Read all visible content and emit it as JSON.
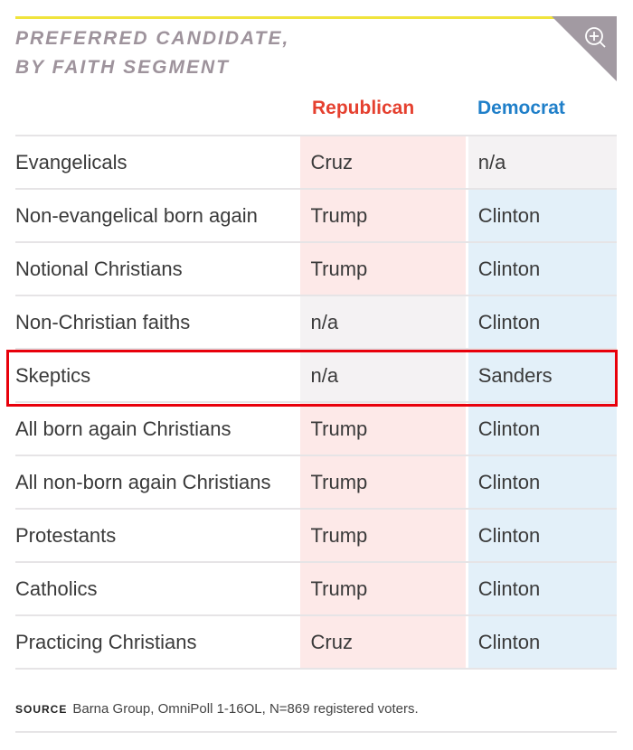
{
  "title": {
    "line1": "PREFERRED CANDIDATE,",
    "line2": "BY FAITH SEGMENT"
  },
  "zoom_icon": "zoom-in-icon",
  "headers": {
    "republican": "Republican",
    "democrat": "Democrat"
  },
  "colors": {
    "republican": "#e5402f",
    "democrat": "#1f7fc9",
    "accent_line": "#f0e43c",
    "highlight": "#e8000b"
  },
  "rows": [
    {
      "segment": "Evangelicals",
      "republican": "Cruz",
      "democrat": "n/a"
    },
    {
      "segment": "Non-evangelical born again",
      "republican": "Trump",
      "democrat": "Clinton"
    },
    {
      "segment": "Notional Christians",
      "republican": "Trump",
      "democrat": "Clinton"
    },
    {
      "segment": "Non-Christian faiths",
      "republican": "n/a",
      "democrat": "Clinton"
    },
    {
      "segment": "Skeptics",
      "republican": "n/a",
      "democrat": "Sanders"
    },
    {
      "segment": "All born again Christians",
      "republican": "Trump",
      "democrat": "Clinton"
    },
    {
      "segment": "All non-born again Christians",
      "republican": "Trump",
      "democrat": "Clinton"
    },
    {
      "segment": "Protestants",
      "republican": "Trump",
      "democrat": "Clinton"
    },
    {
      "segment": "Catholics",
      "republican": "Trump",
      "democrat": "Clinton"
    },
    {
      "segment": "Practicing Christians",
      "republican": "Cruz",
      "democrat": "Clinton"
    }
  ],
  "source": {
    "label": "SOURCE",
    "text": "Barna Group, OmniPoll 1-16OL, N=869 registered voters."
  }
}
